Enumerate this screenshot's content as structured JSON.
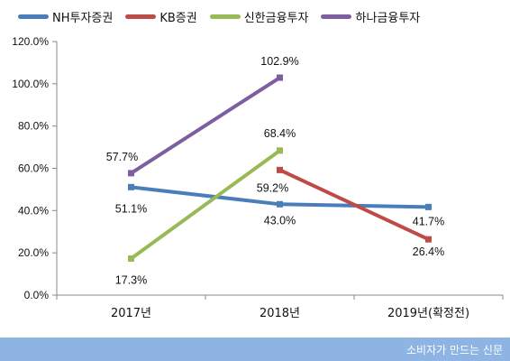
{
  "chart_data": {
    "type": "line",
    "title": "",
    "xlabel": "",
    "ylabel": "",
    "categories": [
      "2017년",
      "2018년",
      "2019년(확정전)"
    ],
    "ylim": [
      0,
      120
    ],
    "yticks": [
      "0.0%",
      "20.0%",
      "40.0%",
      "60.0%",
      "80.0%",
      "100.0%",
      "120.0%"
    ],
    "y_tick_values": [
      0,
      20,
      40,
      60,
      80,
      100,
      120
    ],
    "grid": false,
    "legend_position": "top-left",
    "series": [
      {
        "name": "NH투자증권",
        "color": "#4a7ebb",
        "values": [
          51.1,
          43.0,
          41.7
        ],
        "labels": [
          "51.1%",
          "43.0%",
          "41.7%"
        ]
      },
      {
        "name": "KB증권",
        "color": "#be4b48",
        "values": [
          null,
          59.2,
          26.4
        ],
        "labels": [
          "",
          "59.2%",
          "26.4%"
        ]
      },
      {
        "name": "신한금융투자",
        "color": "#98b954",
        "values": [
          17.3,
          68.4,
          null
        ],
        "labels": [
          "17.3%",
          "68.4%",
          ""
        ]
      },
      {
        "name": "하나금융투자",
        "color": "#7d5fa0",
        "values": [
          57.7,
          102.9,
          null
        ],
        "labels": [
          "57.7%",
          "102.9%",
          ""
        ]
      }
    ]
  },
  "footer": {
    "text": "소비자가 만드는 신문",
    "color": "#8eb4e3"
  }
}
